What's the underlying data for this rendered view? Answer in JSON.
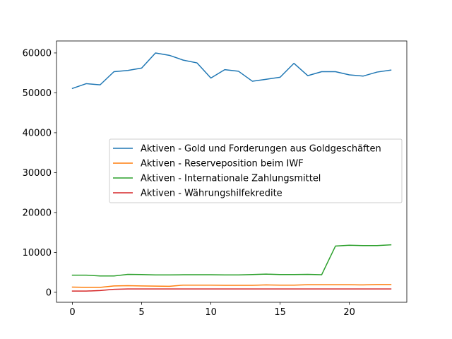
{
  "chart_data": {
    "type": "line",
    "title": "",
    "xlabel": "",
    "ylabel": "",
    "xlim": [
      -1.15,
      24.15
    ],
    "ylim": [
      -2500,
      63000
    ],
    "x_ticks": [
      0,
      5,
      10,
      15,
      20
    ],
    "y_ticks": [
      0,
      10000,
      20000,
      30000,
      40000,
      50000,
      60000
    ],
    "grid": false,
    "legend_position": "center-right",
    "x": [
      0,
      1,
      2,
      3,
      4,
      5,
      6,
      7,
      8,
      9,
      10,
      11,
      12,
      13,
      14,
      15,
      16,
      17,
      18,
      19,
      20,
      21,
      22,
      23
    ],
    "series": [
      {
        "name": "Aktiven - Gold und Forderungen aus Goldgeschäften",
        "color": "#1f77b4",
        "values": [
          51100,
          52300,
          52000,
          55300,
          55600,
          56200,
          60000,
          59400,
          58200,
          57500,
          53700,
          55800,
          55400,
          52900,
          53400,
          53900,
          57400,
          54300,
          55300,
          55300,
          54500,
          54200,
          55200,
          55700
        ]
      },
      {
        "name": "Aktiven - Reserveposition beim IWF",
        "color": "#ff7f0e",
        "values": [
          1300,
          1250,
          1250,
          1600,
          1650,
          1600,
          1550,
          1500,
          1800,
          1800,
          1800,
          1750,
          1750,
          1750,
          1850,
          1800,
          1800,
          1900,
          1900,
          1900,
          1900,
          1850,
          1950,
          1950
        ]
      },
      {
        "name": "Aktiven - Internationale Zahlungsmittel",
        "color": "#2ca02c",
        "values": [
          4300,
          4300,
          4100,
          4100,
          4500,
          4450,
          4350,
          4350,
          4400,
          4400,
          4400,
          4350,
          4350,
          4450,
          4550,
          4450,
          4450,
          4500,
          4400,
          11600,
          11800,
          11700,
          11700,
          11900
        ]
      },
      {
        "name": "Aktiven - Währungshilfekredite",
        "color": "#d62728",
        "values": [
          300,
          300,
          450,
          750,
          850,
          850,
          850,
          850,
          850,
          850,
          850,
          850,
          850,
          850,
          850,
          850,
          850,
          850,
          850,
          850,
          850,
          850,
          850,
          850
        ]
      }
    ]
  }
}
